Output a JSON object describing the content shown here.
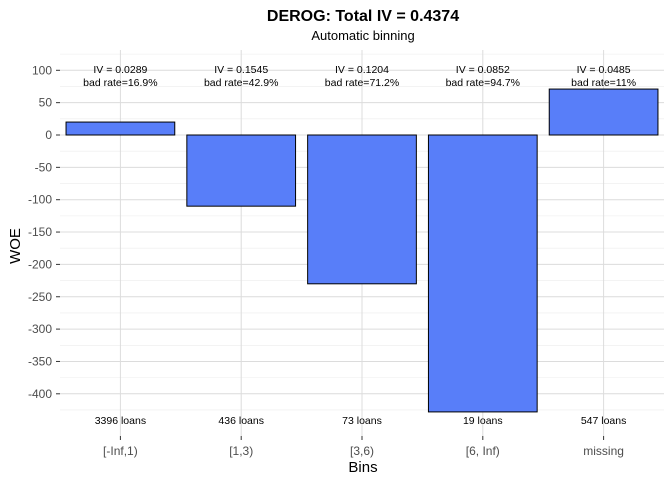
{
  "chart_data": {
    "type": "bar",
    "title": "DEROG: Total IV = 0.4374",
    "subtitle": "Automatic binning",
    "xlabel": "Bins",
    "ylabel": "WOE",
    "categories": [
      "[-Inf,1)",
      "[1,3)",
      "[3,6)",
      "[6, Inf)",
      "missing"
    ],
    "values": [
      20,
      -110,
      -230,
      -428,
      71
    ],
    "iv_labels": [
      "IV = 0.0289",
      "IV = 0.1545",
      "IV = 0.1204",
      "IV = 0.0852",
      "IV = 0.0485"
    ],
    "bad_rate_labels": [
      "bad rate=16.9%",
      "bad rate=42.9%",
      "bad rate=71.2%",
      "bad rate=94.7%",
      "bad rate=11%"
    ],
    "count_labels": [
      "3396 loans",
      "436 loans",
      "73 loans",
      "19 loans",
      "547 loans"
    ],
    "ylim": [
      -450,
      115
    ],
    "yticks": [
      100,
      50,
      0,
      -50,
      -100,
      -150,
      -200,
      -250,
      -300,
      -350,
      -400
    ],
    "grid": true,
    "bar_color": "#587EF9",
    "bar_border": "#000000"
  }
}
